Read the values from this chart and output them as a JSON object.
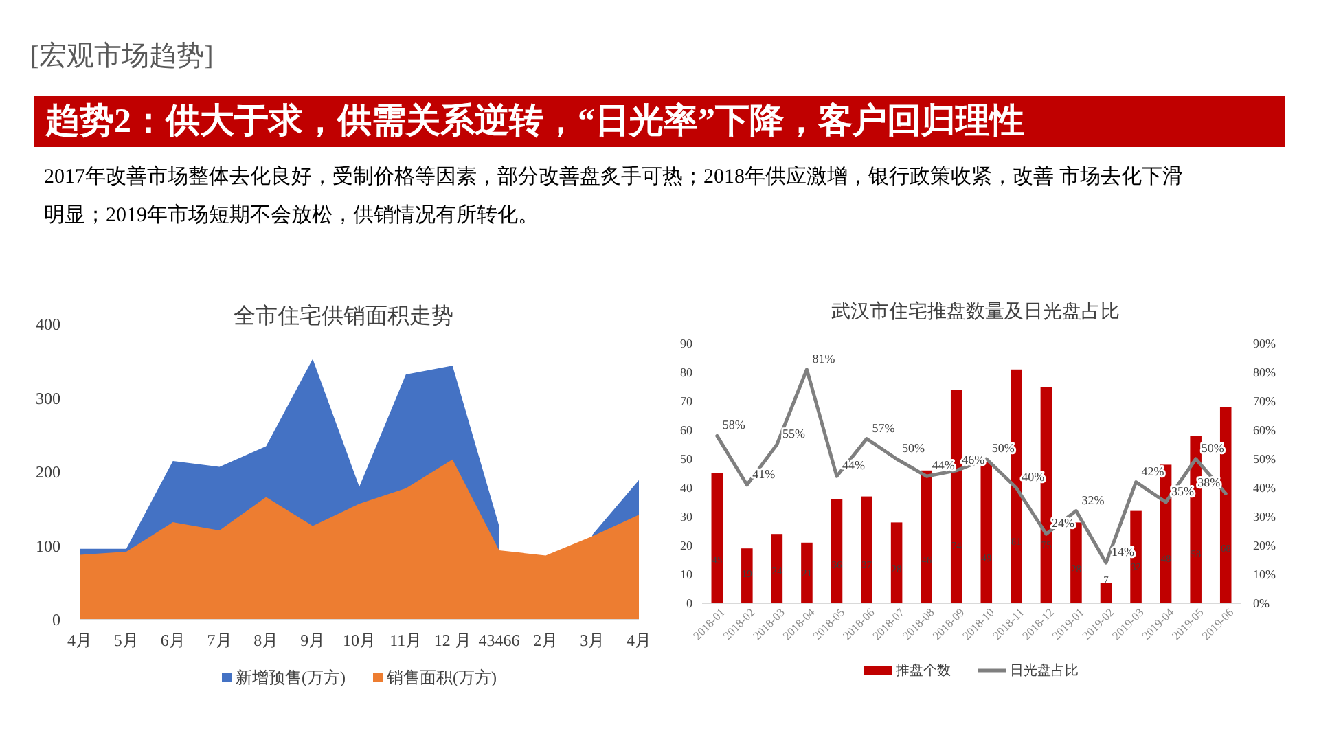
{
  "chart_data": [
    {
      "type": "other",
      "title": "趋势2：供大于求，供需关系逆转，“日光率”下降，客户回归理性",
      "annotations": [
        "[宏观市场趋势]",
        "2017年改善市场整体去化良好，受制价格等因素，部分改善盘炙手可热；2018年供应激增，银行政策收紧，改善 市场去化下滑明显；2019年市场短期不会放松，供销情况有所转化。"
      ]
    },
    {
      "type": "area",
      "title": "全市住宅供销面积走势",
      "categories": [
        "4月",
        "5月",
        "6月",
        "7月",
        "8月",
        "9月",
        "10月",
        "11月",
        "12 月",
        "43466",
        "2月",
        "3月",
        "4月"
      ],
      "series": [
        {
          "name": "新增预售(万方)",
          "color": "#4472c4",
          "values": [
            96,
            96,
            215,
            207,
            235,
            353,
            180,
            332,
            344,
            127,
            null,
            115,
            189
          ]
        },
        {
          "name": "销售面积(万方)",
          "color": "#ed7d31",
          "values": [
            88,
            92,
            132,
            121,
            166,
            127,
            157,
            178,
            217,
            94,
            87,
            113,
            142
          ]
        }
      ],
      "ylim": [
        0,
        400
      ],
      "yticks": [
        0,
        100,
        200,
        300,
        400
      ],
      "legend": "bottom"
    },
    {
      "type": "bar",
      "title": "武汉市住宅推盘数量及日光盘占比",
      "categories": [
        "2018-01",
        "2018-02",
        "2018-03",
        "2018-04",
        "2018-05",
        "2018-06",
        "2018-07",
        "2018-08",
        "2018-09",
        "2018-10",
        "2018-11",
        "2018-12",
        "2019-01",
        "2019-02",
        "2019-03",
        "2019-04",
        "2019-05",
        "2019-06"
      ],
      "series": [
        {
          "name": "推盘个数",
          "color": "#c00000",
          "values": [
            45,
            19,
            24,
            21,
            36,
            37,
            28,
            46,
            74,
            49,
            81,
            75,
            28,
            7,
            32,
            48,
            58,
            68
          ]
        },
        {
          "name": "日光盘占比",
          "type": "line",
          "axis": "y2",
          "color": "#7f7f7f",
          "values": [
            58,
            41,
            55,
            81,
            44,
            57,
            50,
            44,
            46,
            50,
            40,
            24,
            32,
            14,
            42,
            35,
            50,
            38
          ],
          "value_labels": [
            "58%",
            "41%",
            "55%",
            "81%",
            "44%",
            "57%",
            "50%",
            "44%",
            "46%",
            "50%",
            "40%",
            "24%",
            "32%",
            "14%",
            "42%",
            "35%",
            "50%",
            "38%"
          ]
        }
      ],
      "ylim": [
        0,
        90
      ],
      "yticks": [
        0,
        10,
        20,
        30,
        40,
        50,
        60,
        70,
        80,
        90
      ],
      "y2lim": [
        0,
        90
      ],
      "y2ticks": [
        {
          "value": 0,
          "label": "0%"
        },
        {
          "value": 10,
          "label": "10%"
        },
        {
          "value": 20,
          "label": "20%"
        },
        {
          "value": 30,
          "label": "30%"
        },
        {
          "value": 40,
          "label": "40%"
        },
        {
          "value": 50,
          "label": "50%"
        },
        {
          "value": 60,
          "label": "60%"
        },
        {
          "value": 70,
          "label": "70%"
        },
        {
          "value": 80,
          "label": "80%"
        },
        {
          "value": 90,
          "label": "90%"
        }
      ],
      "data_labels": true,
      "legend": "bottom"
    }
  ]
}
